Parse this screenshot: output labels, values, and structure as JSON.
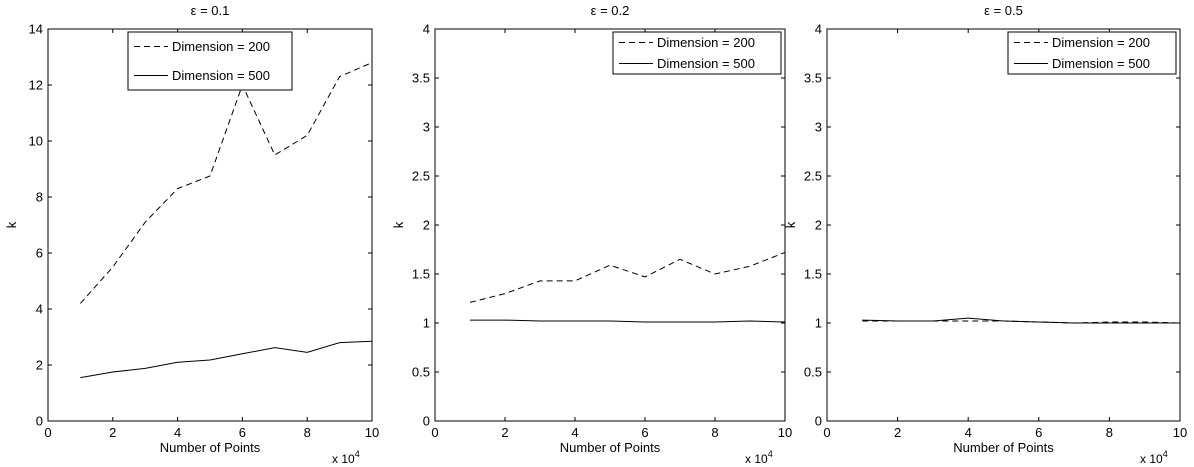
{
  "chart_data": [
    {
      "type": "line",
      "title": "ε = 0.1",
      "xlabel": "Number of Points",
      "ylabel": "k",
      "x_multiplier": "x 10",
      "x_multiplier_exp": "4",
      "xlim": [
        0,
        10
      ],
      "ylim": [
        0,
        14
      ],
      "xticks": [
        "0",
        "2",
        "4",
        "6",
        "8",
        "10"
      ],
      "yticks": [
        "0",
        "2",
        "4",
        "6",
        "8",
        "10",
        "12",
        "14"
      ],
      "legend_position": "top-center",
      "x": [
        1,
        2,
        3,
        4,
        5,
        6,
        7,
        8,
        9,
        10
      ],
      "series": [
        {
          "name": "Dimension = 200",
          "style": "dashed",
          "values": [
            4.2,
            5.5,
            7.1,
            8.3,
            8.75,
            12.0,
            9.5,
            10.2,
            12.3,
            12.8
          ]
        },
        {
          "name": "Dimension = 500",
          "style": "solid",
          "values": [
            1.55,
            1.75,
            1.88,
            2.1,
            2.18,
            2.4,
            2.62,
            2.45,
            2.8,
            2.85
          ]
        }
      ]
    },
    {
      "type": "line",
      "title": "ε = 0.2",
      "xlabel": "Number of Points",
      "ylabel": "k",
      "x_multiplier": "x 10",
      "x_multiplier_exp": "4",
      "xlim": [
        0,
        10
      ],
      "ylim": [
        0,
        4
      ],
      "xticks": [
        "0",
        "2",
        "4",
        "6",
        "8",
        "10"
      ],
      "yticks": [
        "0",
        "0.5",
        "1",
        "1.5",
        "2",
        "2.5",
        "3",
        "3.5",
        "4"
      ],
      "legend_position": "top-right",
      "x": [
        1,
        2,
        3,
        4,
        5,
        6,
        7,
        8,
        9,
        10
      ],
      "series": [
        {
          "name": "Dimension = 200",
          "style": "dashed",
          "values": [
            1.21,
            1.3,
            1.43,
            1.43,
            1.59,
            1.47,
            1.65,
            1.5,
            1.58,
            1.72
          ]
        },
        {
          "name": "Dimension = 500",
          "style": "solid",
          "values": [
            1.03,
            1.03,
            1.02,
            1.02,
            1.02,
            1.01,
            1.01,
            1.01,
            1.02,
            1.01
          ]
        }
      ]
    },
    {
      "type": "line",
      "title": "ε = 0.5",
      "xlabel": "Number of Points",
      "ylabel": "k",
      "x_multiplier": "x 10",
      "x_multiplier_exp": "4",
      "xlim": [
        0,
        10
      ],
      "ylim": [
        0,
        4
      ],
      "xticks": [
        "0",
        "2",
        "4",
        "6",
        "8",
        "10"
      ],
      "yticks": [
        "0",
        "0.5",
        "1",
        "1.5",
        "2",
        "2.5",
        "3",
        "3.5",
        "4"
      ],
      "legend_position": "top-right",
      "x": [
        1,
        2,
        3,
        4,
        5,
        6,
        7,
        8,
        9,
        10
      ],
      "series": [
        {
          "name": "Dimension = 200",
          "style": "dashed",
          "values": [
            1.02,
            1.02,
            1.02,
            1.02,
            1.02,
            1.01,
            1.0,
            1.01,
            1.01,
            1.0
          ]
        },
        {
          "name": "Dimension = 500",
          "style": "solid",
          "values": [
            1.03,
            1.02,
            1.02,
            1.05,
            1.02,
            1.01,
            1.0,
            1.0,
            1.0,
            1.0
          ]
        }
      ]
    }
  ],
  "colors": {
    "line": "#000000",
    "background": "#ffffff",
    "axes": "#000000"
  }
}
